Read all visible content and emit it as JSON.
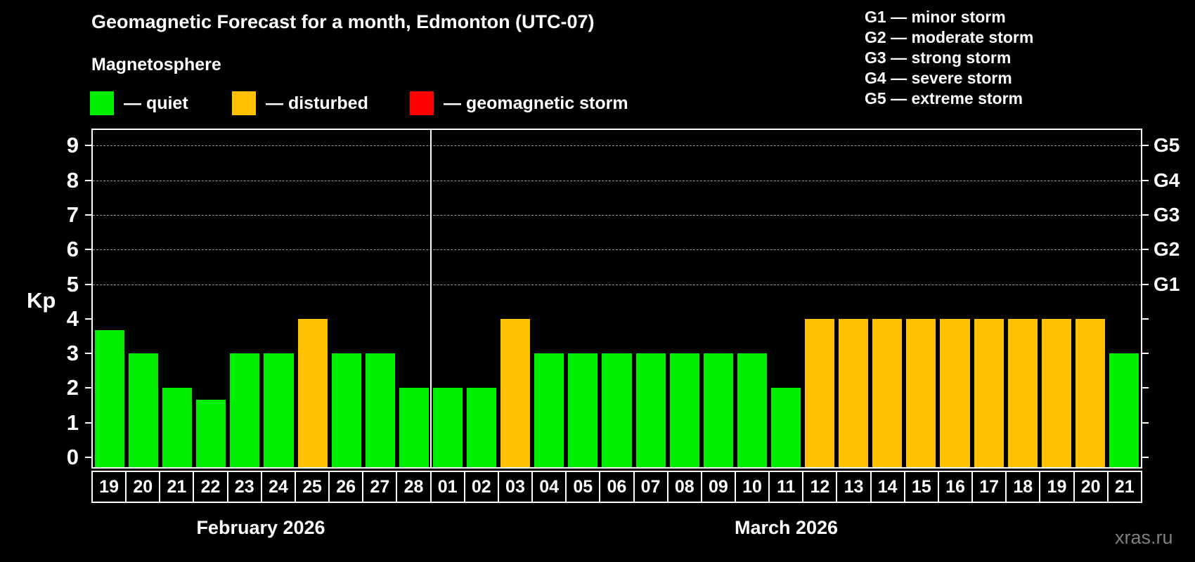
{
  "title": "Geomagnetic Forecast for a month, Edmonton (UTC-07)",
  "subtitle": "Magnetosphere",
  "legend": {
    "items": [
      {
        "label": "— quiet",
        "color": "#00ee00"
      },
      {
        "label": "— disturbed",
        "color": "#ffc000"
      },
      {
        "label": "— geomagnetic storm",
        "color": "#ff0000"
      }
    ]
  },
  "g_legend": {
    "items": [
      "G1 — minor storm",
      "G2 — moderate storm",
      "G3 — strong storm",
      "G4 — severe storm",
      "G5 — extreme storm"
    ]
  },
  "months": [
    {
      "label": "February 2026"
    },
    {
      "label": "March 2026"
    }
  ],
  "watermark": "xras.ru",
  "colors": {
    "background": "#000000",
    "text": "#ffffff",
    "quiet": "#00ee00",
    "disturbed": "#ffc000",
    "storm": "#ff0000",
    "gridline": "#9a9a9a",
    "watermark": "#7f7f7f"
  },
  "chart_data": {
    "type": "bar",
    "title": "Geomagnetic Forecast for a month, Edmonton (UTC-07)",
    "subtitle": "Magnetosphere",
    "ylabel": "Kp",
    "ylim": [
      0,
      9.45
    ],
    "yticks": [
      0,
      1,
      2,
      3,
      4,
      5,
      6,
      7,
      8,
      9
    ],
    "gridlines_at": [
      5,
      6,
      7,
      8,
      9
    ],
    "grid": true,
    "right_axis": [
      {
        "kp": 5,
        "label": "G1"
      },
      {
        "kp": 6,
        "label": "G2"
      },
      {
        "kp": 7,
        "label": "G3"
      },
      {
        "kp": 8,
        "label": "G4"
      },
      {
        "kp": 9,
        "label": "G5"
      }
    ],
    "bars": [
      {
        "month": "February 2026",
        "day": "19",
        "kp": 3.67,
        "status": "quiet"
      },
      {
        "month": "February 2026",
        "day": "20",
        "kp": 3,
        "status": "quiet"
      },
      {
        "month": "February 2026",
        "day": "21",
        "kp": 2,
        "status": "quiet"
      },
      {
        "month": "February 2026",
        "day": "22",
        "kp": 1.67,
        "status": "quiet"
      },
      {
        "month": "February 2026",
        "day": "23",
        "kp": 3,
        "status": "quiet"
      },
      {
        "month": "February 2026",
        "day": "24",
        "kp": 3,
        "status": "quiet"
      },
      {
        "month": "February 2026",
        "day": "25",
        "kp": 4,
        "status": "disturbed"
      },
      {
        "month": "February 2026",
        "day": "26",
        "kp": 3,
        "status": "quiet"
      },
      {
        "month": "February 2026",
        "day": "27",
        "kp": 3,
        "status": "quiet"
      },
      {
        "month": "February 2026",
        "day": "28",
        "kp": 2,
        "status": "quiet"
      },
      {
        "month": "March 2026",
        "day": "01",
        "kp": 2,
        "status": "quiet"
      },
      {
        "month": "March 2026",
        "day": "02",
        "kp": 2,
        "status": "quiet"
      },
      {
        "month": "March 2026",
        "day": "03",
        "kp": 4,
        "status": "disturbed"
      },
      {
        "month": "March 2026",
        "day": "04",
        "kp": 3,
        "status": "quiet"
      },
      {
        "month": "March 2026",
        "day": "05",
        "kp": 3,
        "status": "quiet"
      },
      {
        "month": "March 2026",
        "day": "06",
        "kp": 3,
        "status": "quiet"
      },
      {
        "month": "March 2026",
        "day": "07",
        "kp": 3,
        "status": "quiet"
      },
      {
        "month": "March 2026",
        "day": "08",
        "kp": 3,
        "status": "quiet"
      },
      {
        "month": "March 2026",
        "day": "09",
        "kp": 3,
        "status": "quiet"
      },
      {
        "month": "March 2026",
        "day": "10",
        "kp": 3,
        "status": "quiet"
      },
      {
        "month": "March 2026",
        "day": "11",
        "kp": 2,
        "status": "quiet"
      },
      {
        "month": "March 2026",
        "day": "12",
        "kp": 4,
        "status": "disturbed"
      },
      {
        "month": "March 2026",
        "day": "13",
        "kp": 4,
        "status": "disturbed"
      },
      {
        "month": "March 2026",
        "day": "14",
        "kp": 4,
        "status": "disturbed"
      },
      {
        "month": "March 2026",
        "day": "15",
        "kp": 4,
        "status": "disturbed"
      },
      {
        "month": "March 2026",
        "day": "16",
        "kp": 4,
        "status": "disturbed"
      },
      {
        "month": "March 2026",
        "day": "17",
        "kp": 4,
        "status": "disturbed"
      },
      {
        "month": "March 2026",
        "day": "18",
        "kp": 4,
        "status": "disturbed"
      },
      {
        "month": "March 2026",
        "day": "19",
        "kp": 4,
        "status": "disturbed"
      },
      {
        "month": "March 2026",
        "day": "20",
        "kp": 4,
        "status": "disturbed"
      },
      {
        "month": "March 2026",
        "day": "21",
        "kp": 3,
        "status": "quiet"
      }
    ]
  }
}
